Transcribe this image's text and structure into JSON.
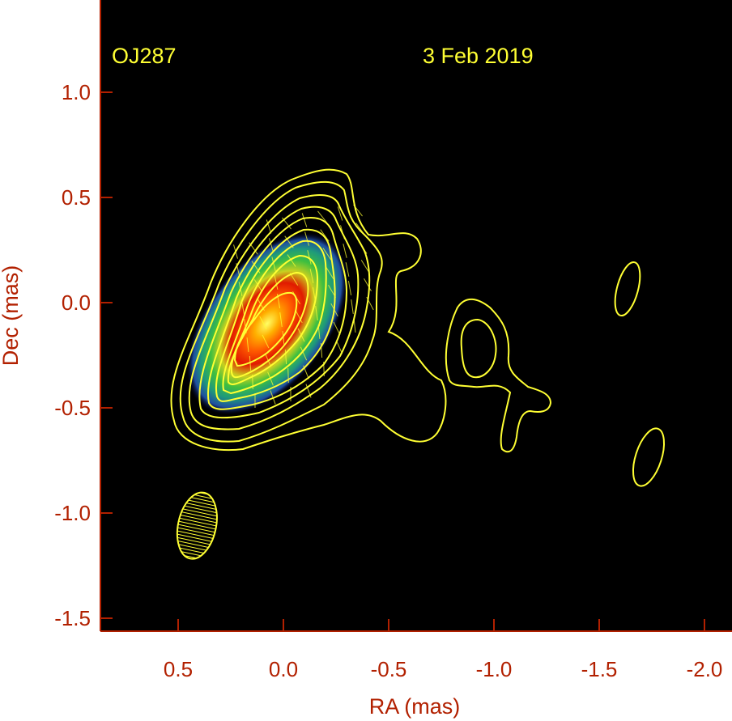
{
  "chart_data": {
    "type": "heatmap",
    "source_label": "OJ287",
    "date_label": "3 Feb 2019",
    "xlabel": "RA (mas)",
    "ylabel": "Dec (mas)",
    "xlim": [
      0.85,
      -2.05
    ],
    "ylim": [
      -1.55,
      1.4
    ],
    "x_reversed": true,
    "x_ticks": [
      0.5,
      0.0,
      -0.5,
      -1.0,
      -1.5,
      -2.0
    ],
    "x_tick_labels": [
      "0.5",
      "0.0",
      "-0.5",
      "-1.0",
      "-1.5",
      "-2.0"
    ],
    "y_ticks": [
      1.0,
      0.5,
      0.0,
      -0.5,
      -1.0,
      -1.5
    ],
    "y_tick_labels": [
      "1.0",
      "0.5",
      "0.0",
      "-0.5",
      "-1.0",
      "-1.5"
    ],
    "background": "#000000",
    "contour_color": "#ffff33",
    "axis_text_color": "#b22000",
    "intensity_peak": {
      "ra": 0.03,
      "dec": -0.08
    },
    "colormap": [
      "#000066",
      "#1f4fa0",
      "#1f9a7a",
      "#3fbf3f",
      "#b5d020",
      "#ff8c00",
      "#e51a00",
      "#ffff66"
    ],
    "beam": {
      "center_ra": 0.41,
      "center_dec": -1.06,
      "major_mas": 0.32,
      "minor_mas": 0.18,
      "pa_deg": 12
    },
    "grid": false,
    "legend": "none"
  }
}
